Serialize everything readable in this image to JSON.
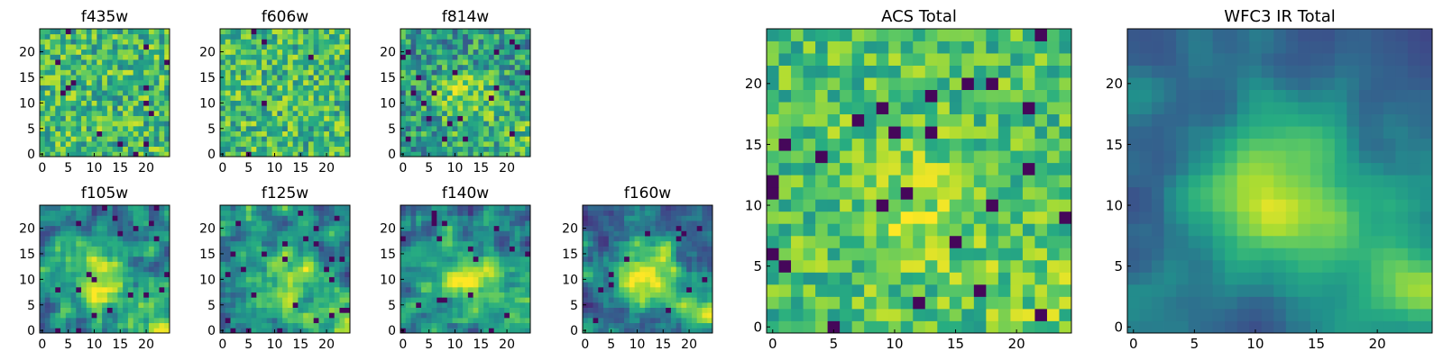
{
  "chart_data": [
    {
      "type": "heatmap",
      "title": "f435w",
      "xticks": [
        0,
        5,
        10,
        15,
        20
      ],
      "yticks": [
        0,
        5,
        10,
        15,
        20
      ],
      "xlim": [
        -0.5,
        24.5
      ],
      "ylim": [
        -0.5,
        24.5
      ],
      "grid": false,
      "colormap": "viridis",
      "layout": "small",
      "texture": "uniform-noise"
    },
    {
      "type": "heatmap",
      "title": "f606w",
      "xticks": [
        0,
        5,
        10,
        15,
        20
      ],
      "yticks": [
        0,
        5,
        10,
        15,
        20
      ],
      "xlim": [
        -0.5,
        24.5
      ],
      "ylim": [
        -0.5,
        24.5
      ],
      "grid": false,
      "colormap": "viridis",
      "layout": "small",
      "texture": "uniform-noise"
    },
    {
      "type": "heatmap",
      "title": "f814w",
      "xticks": [
        0,
        5,
        10,
        15,
        20
      ],
      "yticks": [
        0,
        5,
        10,
        15,
        20
      ],
      "xlim": [
        -0.5,
        24.5
      ],
      "ylim": [
        -0.5,
        24.5
      ],
      "grid": false,
      "colormap": "viridis",
      "layout": "small",
      "texture": "faint-central-source"
    },
    {
      "type": "heatmap",
      "title": "f105w",
      "xticks": [
        0,
        5,
        10,
        15,
        20
      ],
      "yticks": [
        0,
        5,
        10,
        15,
        20
      ],
      "xlim": [
        -0.5,
        24.5
      ],
      "ylim": [
        -0.5,
        24.5
      ],
      "grid": false,
      "colormap": "viridis",
      "layout": "small",
      "texture": "central-source"
    },
    {
      "type": "heatmap",
      "title": "f125w",
      "xticks": [
        0,
        5,
        10,
        15,
        20
      ],
      "yticks": [
        0,
        5,
        10,
        15,
        20
      ],
      "xlim": [
        -0.5,
        24.5
      ],
      "ylim": [
        -0.5,
        24.5
      ],
      "grid": false,
      "colormap": "viridis",
      "layout": "small",
      "texture": "central-source"
    },
    {
      "type": "heatmap",
      "title": "f140w",
      "xticks": [
        0,
        5,
        10,
        15,
        20
      ],
      "yticks": [
        0,
        5,
        10,
        15,
        20
      ],
      "xlim": [
        -0.5,
        24.5
      ],
      "ylim": [
        -0.5,
        24.5
      ],
      "grid": false,
      "colormap": "viridis",
      "layout": "small",
      "texture": "central-source"
    },
    {
      "type": "heatmap",
      "title": "f160w",
      "xticks": [
        0,
        5,
        10,
        15,
        20
      ],
      "yticks": [
        0,
        5,
        10,
        15,
        20
      ],
      "xlim": [
        -0.5,
        24.5
      ],
      "ylim": [
        -0.5,
        24.5
      ],
      "grid": false,
      "colormap": "viridis",
      "layout": "small",
      "texture": "strong-central-source"
    },
    {
      "type": "heatmap",
      "title": "ACS Total",
      "xticks": [
        0,
        5,
        10,
        15,
        20
      ],
      "yticks": [
        0,
        5,
        10,
        15,
        20
      ],
      "xlim": [
        -0.5,
        24.5
      ],
      "ylim": [
        -0.5,
        24.5
      ],
      "grid": false,
      "colormap": "viridis",
      "layout": "large",
      "texture": "bright-noise"
    },
    {
      "type": "heatmap",
      "title": "WFC3 IR Total",
      "xticks": [
        0,
        5,
        10,
        15,
        20
      ],
      "yticks": [
        0,
        5,
        10,
        15,
        20
      ],
      "xlim": [
        -0.5,
        24.5
      ],
      "ylim": [
        -0.5,
        24.5
      ],
      "grid": false,
      "colormap": "viridis",
      "layout": "large",
      "texture": "smooth-central-source"
    }
  ]
}
